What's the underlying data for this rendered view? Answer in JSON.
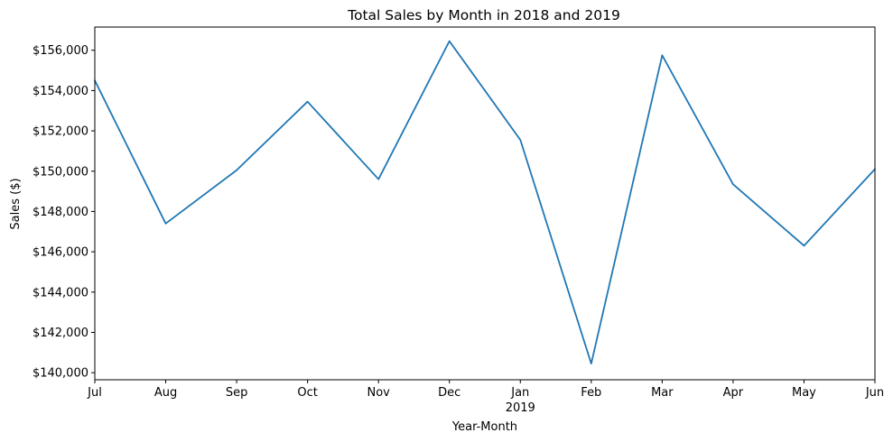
{
  "chart_data": {
    "type": "line",
    "title": "Total Sales by Month in 2018 and 2019",
    "xlabel": "Year-Month",
    "ylabel": "Sales ($)",
    "x": [
      "Jul",
      "Aug",
      "Sep",
      "Oct",
      "Nov",
      "Dec",
      "Jan",
      "Feb",
      "Mar",
      "Apr",
      "May",
      "Jun"
    ],
    "x_year_labels": [
      {
        "category": "Jan",
        "label": "2019"
      }
    ],
    "series": [
      {
        "color": "#1f77b4",
        "values": [
          154500,
          147400,
          150050,
          153450,
          149600,
          156450,
          151550,
          140450,
          155750,
          149350,
          146300,
          150100
        ]
      }
    ],
    "ylim": [
      139650,
      157150
    ],
    "yticks": [
      140000,
      142000,
      144000,
      146000,
      148000,
      150000,
      152000,
      154000,
      156000
    ],
    "ytick_labels": [
      "$140,000",
      "$142,000",
      "$144,000",
      "$146,000",
      "$148,000",
      "$150,000",
      "$152,000",
      "$154,000",
      "$156,000"
    ],
    "grid": false,
    "legend": "none"
  }
}
